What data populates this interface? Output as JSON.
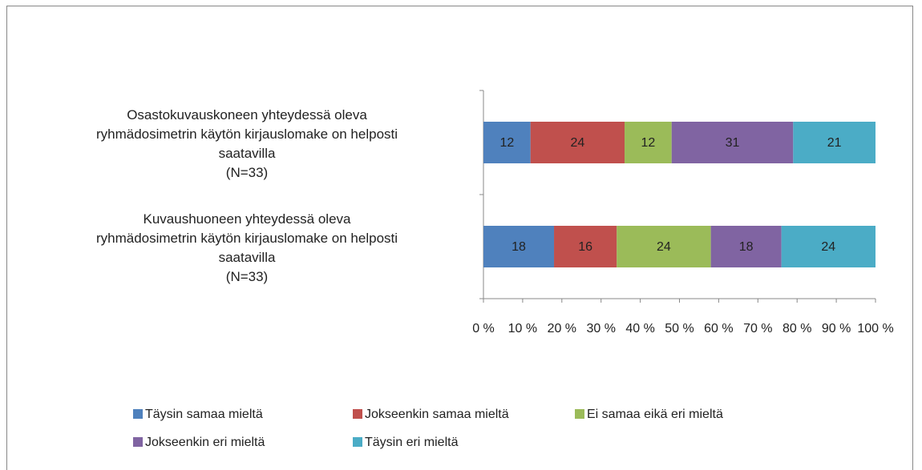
{
  "chart_data": {
    "type": "stacked-bar-horizontal",
    "categories": [
      "Osastokuvauskoneen yhteydessä oleva\nryhmädosimetrin käytön kirjauslomake on helposti\nsaatavilla\n(N=33)",
      "Kuvaushuoneen yhteydessä oleva\nryhmädosimetrin käytön kirjauslomake on helposti\nsaatavilla\n(N=33)"
    ],
    "series": [
      {
        "name": "Täysin samaa mieltä",
        "color": "#4f81bd",
        "values": [
          12,
          18
        ]
      },
      {
        "name": "Jokseenkin samaa mieltä",
        "color": "#c0504d",
        "values": [
          24,
          16
        ]
      },
      {
        "name": "Ei samaa eikä eri mieltä",
        "color": "#9bbb59",
        "values": [
          12,
          24
        ]
      },
      {
        "name": "Jokseenkin eri mieltä",
        "color": "#8064a2",
        "values": [
          31,
          18
        ]
      },
      {
        "name": "Täysin eri mieltä",
        "color": "#4bacc6",
        "values": [
          21,
          24
        ]
      }
    ],
    "xlim": [
      0,
      100
    ],
    "xticks": [
      {
        "value": 0,
        "label": "0 %"
      },
      {
        "value": 10,
        "label": "10 %"
      },
      {
        "value": 20,
        "label": "20 %"
      },
      {
        "value": 30,
        "label": "30 %"
      },
      {
        "value": 40,
        "label": "40 %"
      },
      {
        "value": 50,
        "label": "50 %"
      },
      {
        "value": 60,
        "label": "60 %"
      },
      {
        "value": 70,
        "label": "70 %"
      },
      {
        "value": 80,
        "label": "80 %"
      },
      {
        "value": 90,
        "label": "90 %"
      },
      {
        "value": 100,
        "label": "100 %"
      }
    ],
    "legend": "bottom"
  }
}
